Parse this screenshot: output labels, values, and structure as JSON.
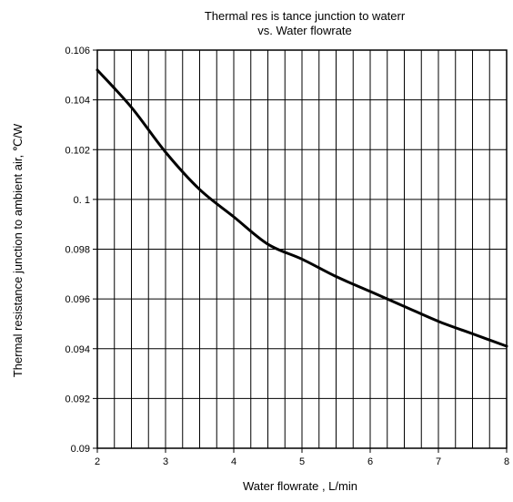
{
  "chart_data": {
    "type": "line",
    "title_lines": [
      "Thermal res is tance junction to waterr",
      "vs. Water flowrate"
    ],
    "xlabel": "Water flowrate ,  L/min",
    "ylabel": "Thermal resistance junction to ambient air, ℃/W",
    "xlim": [
      2,
      8
    ],
    "ylim": [
      0.09,
      0.106
    ],
    "x_ticks": [
      2,
      3,
      4,
      5,
      6,
      7,
      8
    ],
    "x_tick_labels": [
      "2",
      "3",
      "4",
      "5",
      "6",
      "7",
      "8"
    ],
    "y_ticks": [
      0.09,
      0.092,
      0.094,
      0.096,
      0.098,
      0.1,
      0.102,
      0.104,
      0.106
    ],
    "y_tick_labels": [
      "0.09",
      "0.092",
      "0.094",
      "0.096",
      "0.098",
      "0. 1",
      "0.102",
      "0.104",
      "0.106"
    ],
    "minor_x_step": 0.25,
    "grid": true,
    "line_color": "#000000",
    "series": [
      {
        "x": [
          2,
          2.5,
          3,
          3.5,
          4,
          4.5,
          5,
          5.5,
          6,
          6.5,
          7,
          7.5,
          8
        ],
        "values": [
          0.1052,
          0.1037,
          0.1019,
          0.1004,
          0.0993,
          0.0982,
          0.0976,
          0.0969,
          0.0963,
          0.0957,
          0.0951,
          0.0946,
          0.0941
        ]
      }
    ]
  }
}
